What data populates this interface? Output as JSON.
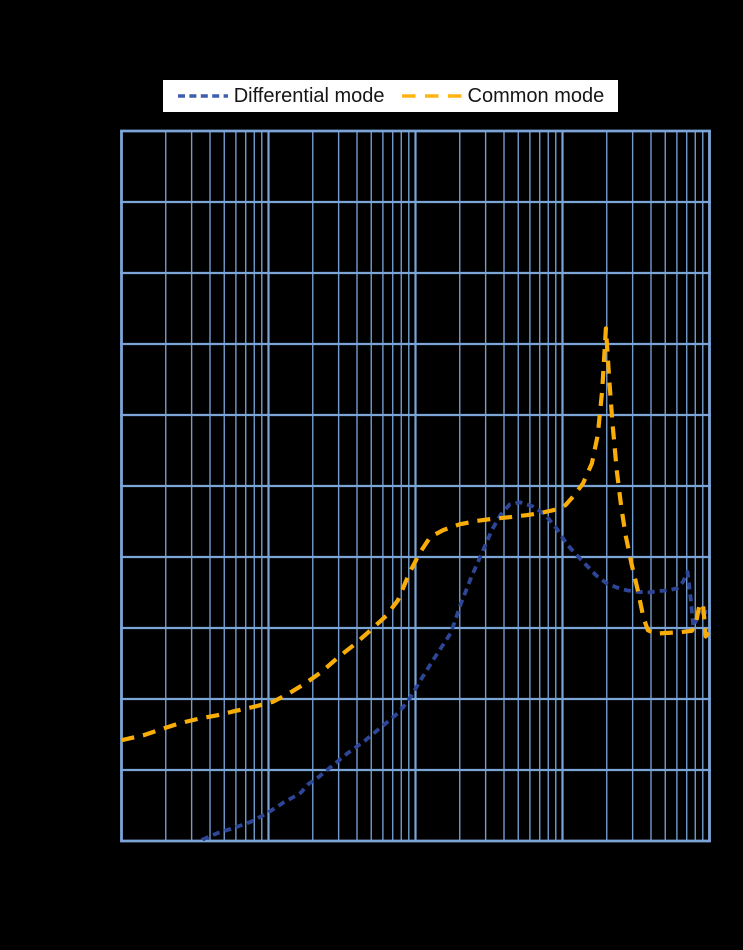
{
  "legend": {
    "items": [
      {
        "label": "Differential mode",
        "color": "#3E5CB0",
        "dash_array": "7 4.4",
        "swatch_width": 52
      },
      {
        "label": "Common mode",
        "color": "#FFB412",
        "dash_array": "13.5 9.5",
        "swatch_width": 62
      }
    ]
  },
  "chart_data": {
    "type": "line",
    "title": "",
    "background_color": "#000000",
    "grid": {
      "color": "#7BA4D7",
      "on": true
    },
    "legend_position": "top-center",
    "x_axis": {
      "scale": "log",
      "decades": 4,
      "tick_labels_visible": false,
      "label": ""
    },
    "y_axis": {
      "scale": "divisions",
      "divisions": 10,
      "tick_labels_visible": false,
      "label": ""
    },
    "note_units": "x = log-decade position 0..4 (no tick labels rendered in image); y = grid divisions 0..10 from bottom axis",
    "series": [
      {
        "name": "Differential mode",
        "color": "#2E4697",
        "dash": [
          7,
          5
        ],
        "width": 3.8,
        "points": [
          [
            0.5,
            -0.12
          ],
          [
            0.55,
            0.02
          ],
          [
            0.65,
            0.11
          ],
          [
            0.76,
            0.18
          ],
          [
            0.88,
            0.27
          ],
          [
            0.99,
            0.39
          ],
          [
            1.1,
            0.54
          ],
          [
            1.17,
            0.62
          ],
          [
            1.22,
            0.68
          ],
          [
            1.27,
            0.8
          ],
          [
            1.34,
            0.9
          ],
          [
            1.44,
            1.07
          ],
          [
            1.54,
            1.24
          ],
          [
            1.66,
            1.42
          ],
          [
            1.77,
            1.61
          ],
          [
            1.88,
            1.8
          ],
          [
            1.95,
            1.97
          ],
          [
            2.03,
            2.25
          ],
          [
            2.12,
            2.55
          ],
          [
            2.24,
            2.93
          ],
          [
            2.31,
            3.35
          ],
          [
            2.38,
            3.72
          ],
          [
            2.45,
            4.05
          ],
          [
            2.52,
            4.38
          ],
          [
            2.58,
            4.6
          ],
          [
            2.64,
            4.74
          ],
          [
            2.71,
            4.77
          ],
          [
            2.8,
            4.71
          ],
          [
            2.88,
            4.6
          ],
          [
            2.96,
            4.4
          ],
          [
            3.03,
            4.18
          ],
          [
            3.1,
            4.02
          ],
          [
            3.16,
            3.89
          ],
          [
            3.23,
            3.74
          ],
          [
            3.3,
            3.63
          ],
          [
            3.37,
            3.57
          ],
          [
            3.44,
            3.53
          ],
          [
            3.51,
            3.51
          ],
          [
            3.58,
            3.5
          ],
          [
            3.65,
            3.52
          ],
          [
            3.72,
            3.53
          ],
          [
            3.78,
            3.56
          ],
          [
            3.82,
            3.65
          ],
          [
            3.85,
            3.79
          ],
          [
            3.87,
            3.45
          ],
          [
            3.89,
            3.02
          ],
          [
            3.93,
            3.2
          ],
          [
            3.96,
            3.23
          ],
          [
            4.0,
            3.22
          ]
        ]
      },
      {
        "name": "Common mode",
        "color": "#F9AD08",
        "dash": [
          13,
          9
        ],
        "width": 4.2,
        "points": [
          [
            0.0,
            1.42
          ],
          [
            0.15,
            1.49
          ],
          [
            0.28,
            1.58
          ],
          [
            0.4,
            1.66
          ],
          [
            0.52,
            1.72
          ],
          [
            0.65,
            1.77
          ],
          [
            0.77,
            1.83
          ],
          [
            0.9,
            1.89
          ],
          [
            1.03,
            1.96
          ],
          [
            1.14,
            2.08
          ],
          [
            1.25,
            2.22
          ],
          [
            1.36,
            2.38
          ],
          [
            1.47,
            2.58
          ],
          [
            1.58,
            2.76
          ],
          [
            1.69,
            2.96
          ],
          [
            1.8,
            3.17
          ],
          [
            1.88,
            3.39
          ],
          [
            1.96,
            3.78
          ],
          [
            2.03,
            4.06
          ],
          [
            2.1,
            4.28
          ],
          [
            2.19,
            4.38
          ],
          [
            2.3,
            4.46
          ],
          [
            2.42,
            4.51
          ],
          [
            2.53,
            4.54
          ],
          [
            2.64,
            4.56
          ],
          [
            2.76,
            4.59
          ],
          [
            2.85,
            4.62
          ],
          [
            2.94,
            4.66
          ],
          [
            3.02,
            4.73
          ],
          [
            3.08,
            4.87
          ],
          [
            3.14,
            5.04
          ],
          [
            3.2,
            5.32
          ],
          [
            3.24,
            5.72
          ],
          [
            3.27,
            6.35
          ],
          [
            3.295,
            7.22
          ],
          [
            3.32,
            6.45
          ],
          [
            3.34,
            5.88
          ],
          [
            3.37,
            5.2
          ],
          [
            3.4,
            4.7
          ],
          [
            3.43,
            4.3
          ],
          [
            3.47,
            3.9
          ],
          [
            3.51,
            3.55
          ],
          [
            3.55,
            3.15
          ],
          [
            3.58,
            2.97
          ],
          [
            3.63,
            2.92
          ],
          [
            3.7,
            2.93
          ],
          [
            3.8,
            2.94
          ],
          [
            3.88,
            2.96
          ],
          [
            3.91,
            3.1
          ],
          [
            3.93,
            3.3
          ],
          [
            3.955,
            3.35
          ],
          [
            3.975,
            2.88
          ],
          [
            4.0,
            2.97
          ]
        ]
      }
    ]
  }
}
